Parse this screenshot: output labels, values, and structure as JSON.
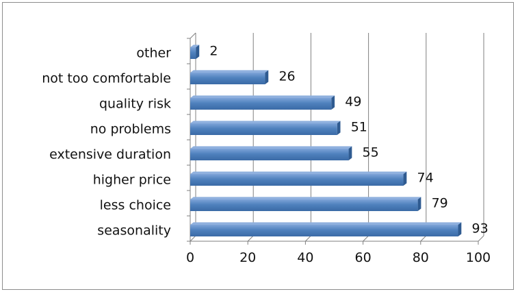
{
  "chart_data": {
    "type": "bar",
    "orientation": "horizontal",
    "categories": [
      "other",
      "not too comfortable",
      "quality risk",
      "no problems",
      "extensive duration",
      "higher price",
      "less choice",
      "seasonality"
    ],
    "values": [
      2,
      26,
      49,
      51,
      55,
      74,
      79,
      93
    ],
    "xlim": [
      0,
      100
    ],
    "xticks": [
      0,
      20,
      40,
      60,
      80,
      100
    ],
    "grid": true,
    "data_labels": true,
    "bar_color": "#4f81bd",
    "style": "3d"
  }
}
